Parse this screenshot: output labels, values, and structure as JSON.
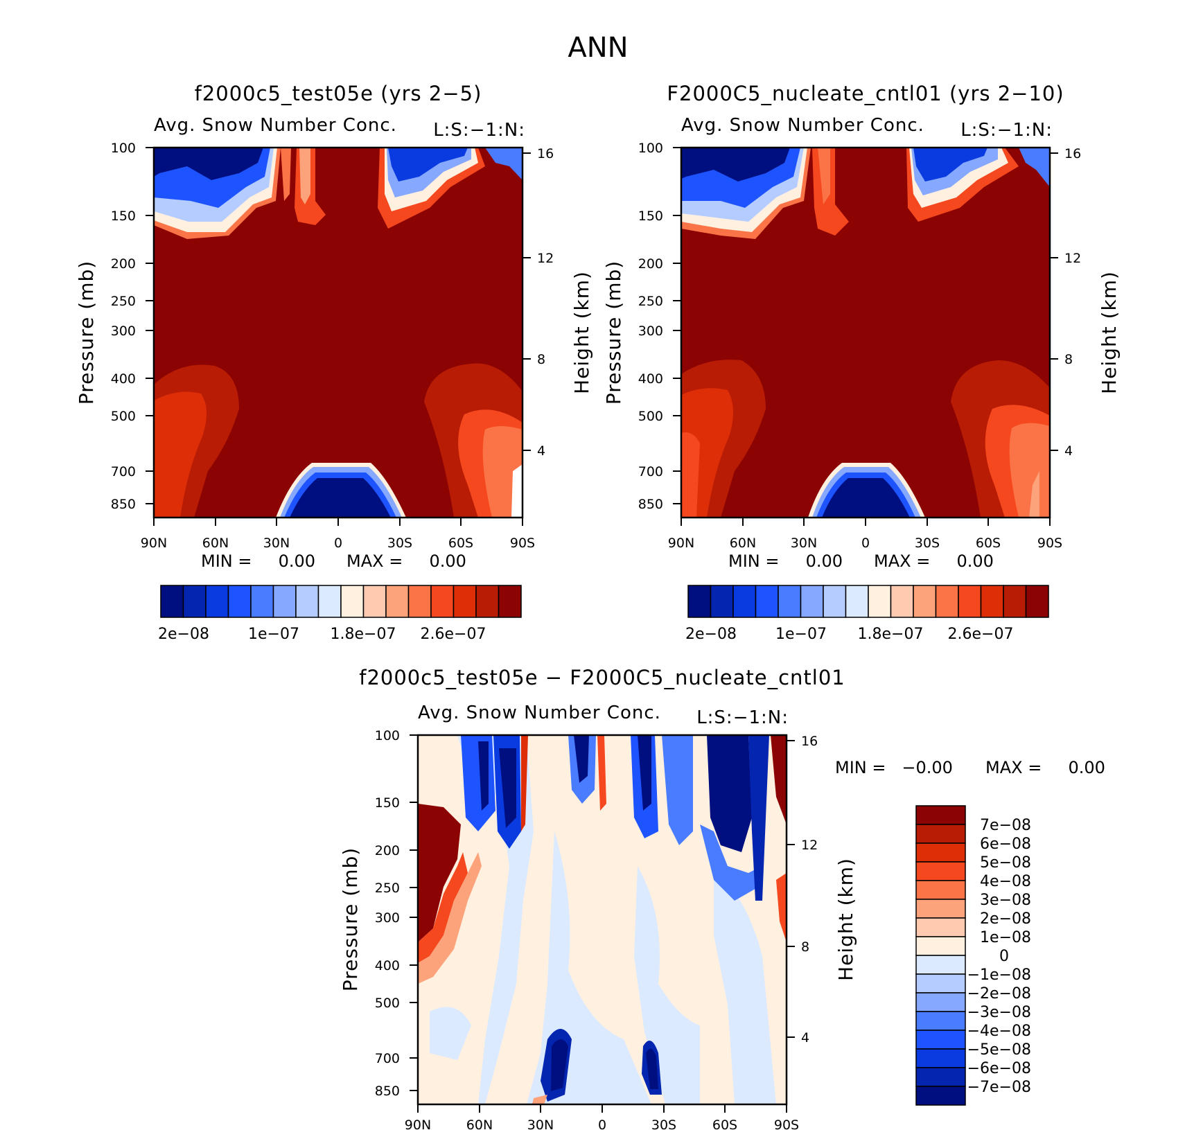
{
  "figure_title": "ANN",
  "chart_data": [
    {
      "type": "heatmap",
      "title": "f2000c5_test05e (yrs 2-5)",
      "subtitle": "Avg. Snow Number Conc.",
      "units_label": "L:S:-1:N:",
      "xlabel": "",
      "ylabel": "Pressure (mb)",
      "y2label": "Height (km)",
      "x_ticks": [
        "90N",
        "60N",
        "30N",
        "0",
        "30S",
        "60S",
        "90S"
      ],
      "y_ticks": [
        "100",
        "150",
        "200",
        "250",
        "300",
        "400",
        "500",
        "700",
        "850"
      ],
      "y2_ticks": [
        "16",
        "12",
        "8",
        "4"
      ],
      "ylim": [
        100,
        850
      ],
      "min_text": "MIN =     0.00",
      "max_text": "MAX =     0.00",
      "colorbar_labels": [
        "2e-08",
        "1e-07",
        "1.8e-07",
        "2.6e-07"
      ]
    },
    {
      "type": "heatmap",
      "title": "F2000C5_nucleate_cntl01 (yrs 2-10)",
      "subtitle": "Avg. Snow Number Conc.",
      "units_label": "L:S:-1:N:",
      "xlabel": "",
      "ylabel": "Pressure (mb)",
      "y2label": "Height (km)",
      "x_ticks": [
        "90N",
        "60N",
        "30N",
        "0",
        "30S",
        "60S",
        "90S"
      ],
      "y_ticks": [
        "100",
        "150",
        "200",
        "250",
        "300",
        "400",
        "500",
        "700",
        "850"
      ],
      "y2_ticks": [
        "16",
        "12",
        "8",
        "4"
      ],
      "ylim": [
        100,
        850
      ],
      "min_text": "MIN =     0.00",
      "max_text": "MAX =     0.00",
      "colorbar_labels": [
        "2e-08",
        "1e-07",
        "1.8e-07",
        "2.6e-07"
      ]
    },
    {
      "type": "heatmap",
      "title": "f2000c5_test05e - F2000C5_nucleate_cntl01",
      "subtitle": "Avg. Snow Number Conc.",
      "units_label": "L:S:-1:N:",
      "xlabel": "",
      "ylabel": "Pressure (mb)",
      "y2label": "Height (km)",
      "x_ticks": [
        "90N",
        "60N",
        "30N",
        "0",
        "30S",
        "60S",
        "90S"
      ],
      "y_ticks": [
        "100",
        "150",
        "200",
        "250",
        "300",
        "400",
        "500",
        "700",
        "850"
      ],
      "y2_ticks": [
        "16",
        "12",
        "8",
        "4"
      ],
      "ylim": [
        100,
        850
      ],
      "min_text": "MIN =   -0.00",
      "max_text": "MAX =     0.00",
      "colorbar_labels": [
        "7e-08",
        "6e-08",
        "5e-08",
        "4e-08",
        "3e-08",
        "2e-08",
        "1e-08",
        "0",
        "-1e-08",
        "-2e-08",
        "-3e-08",
        "-4e-08",
        "-5e-08",
        "-6e-08",
        "-7e-08"
      ]
    }
  ],
  "colors": {
    "model_scale": [
      "#000f80",
      "#0325b0",
      "#0a3be0",
      "#1e54ff",
      "#4a7cff",
      "#86a8ff",
      "#b4ccff",
      "#dbeaff",
      "#fff0e0",
      "#ffcab0",
      "#fca37c",
      "#fb7447",
      "#f5481e",
      "#dd2e08",
      "#b81c05",
      "#8c0303"
    ],
    "diff_scale": [
      "#8c0303",
      "#b81c05",
      "#dd2e08",
      "#f5481e",
      "#fb7447",
      "#fca37c",
      "#ffcab0",
      "#fff0e0",
      "#dbeaff",
      "#b4ccff",
      "#86a8ff",
      "#4a7cff",
      "#1e54ff",
      "#0a3be0",
      "#0325b0",
      "#000f80"
    ]
  }
}
